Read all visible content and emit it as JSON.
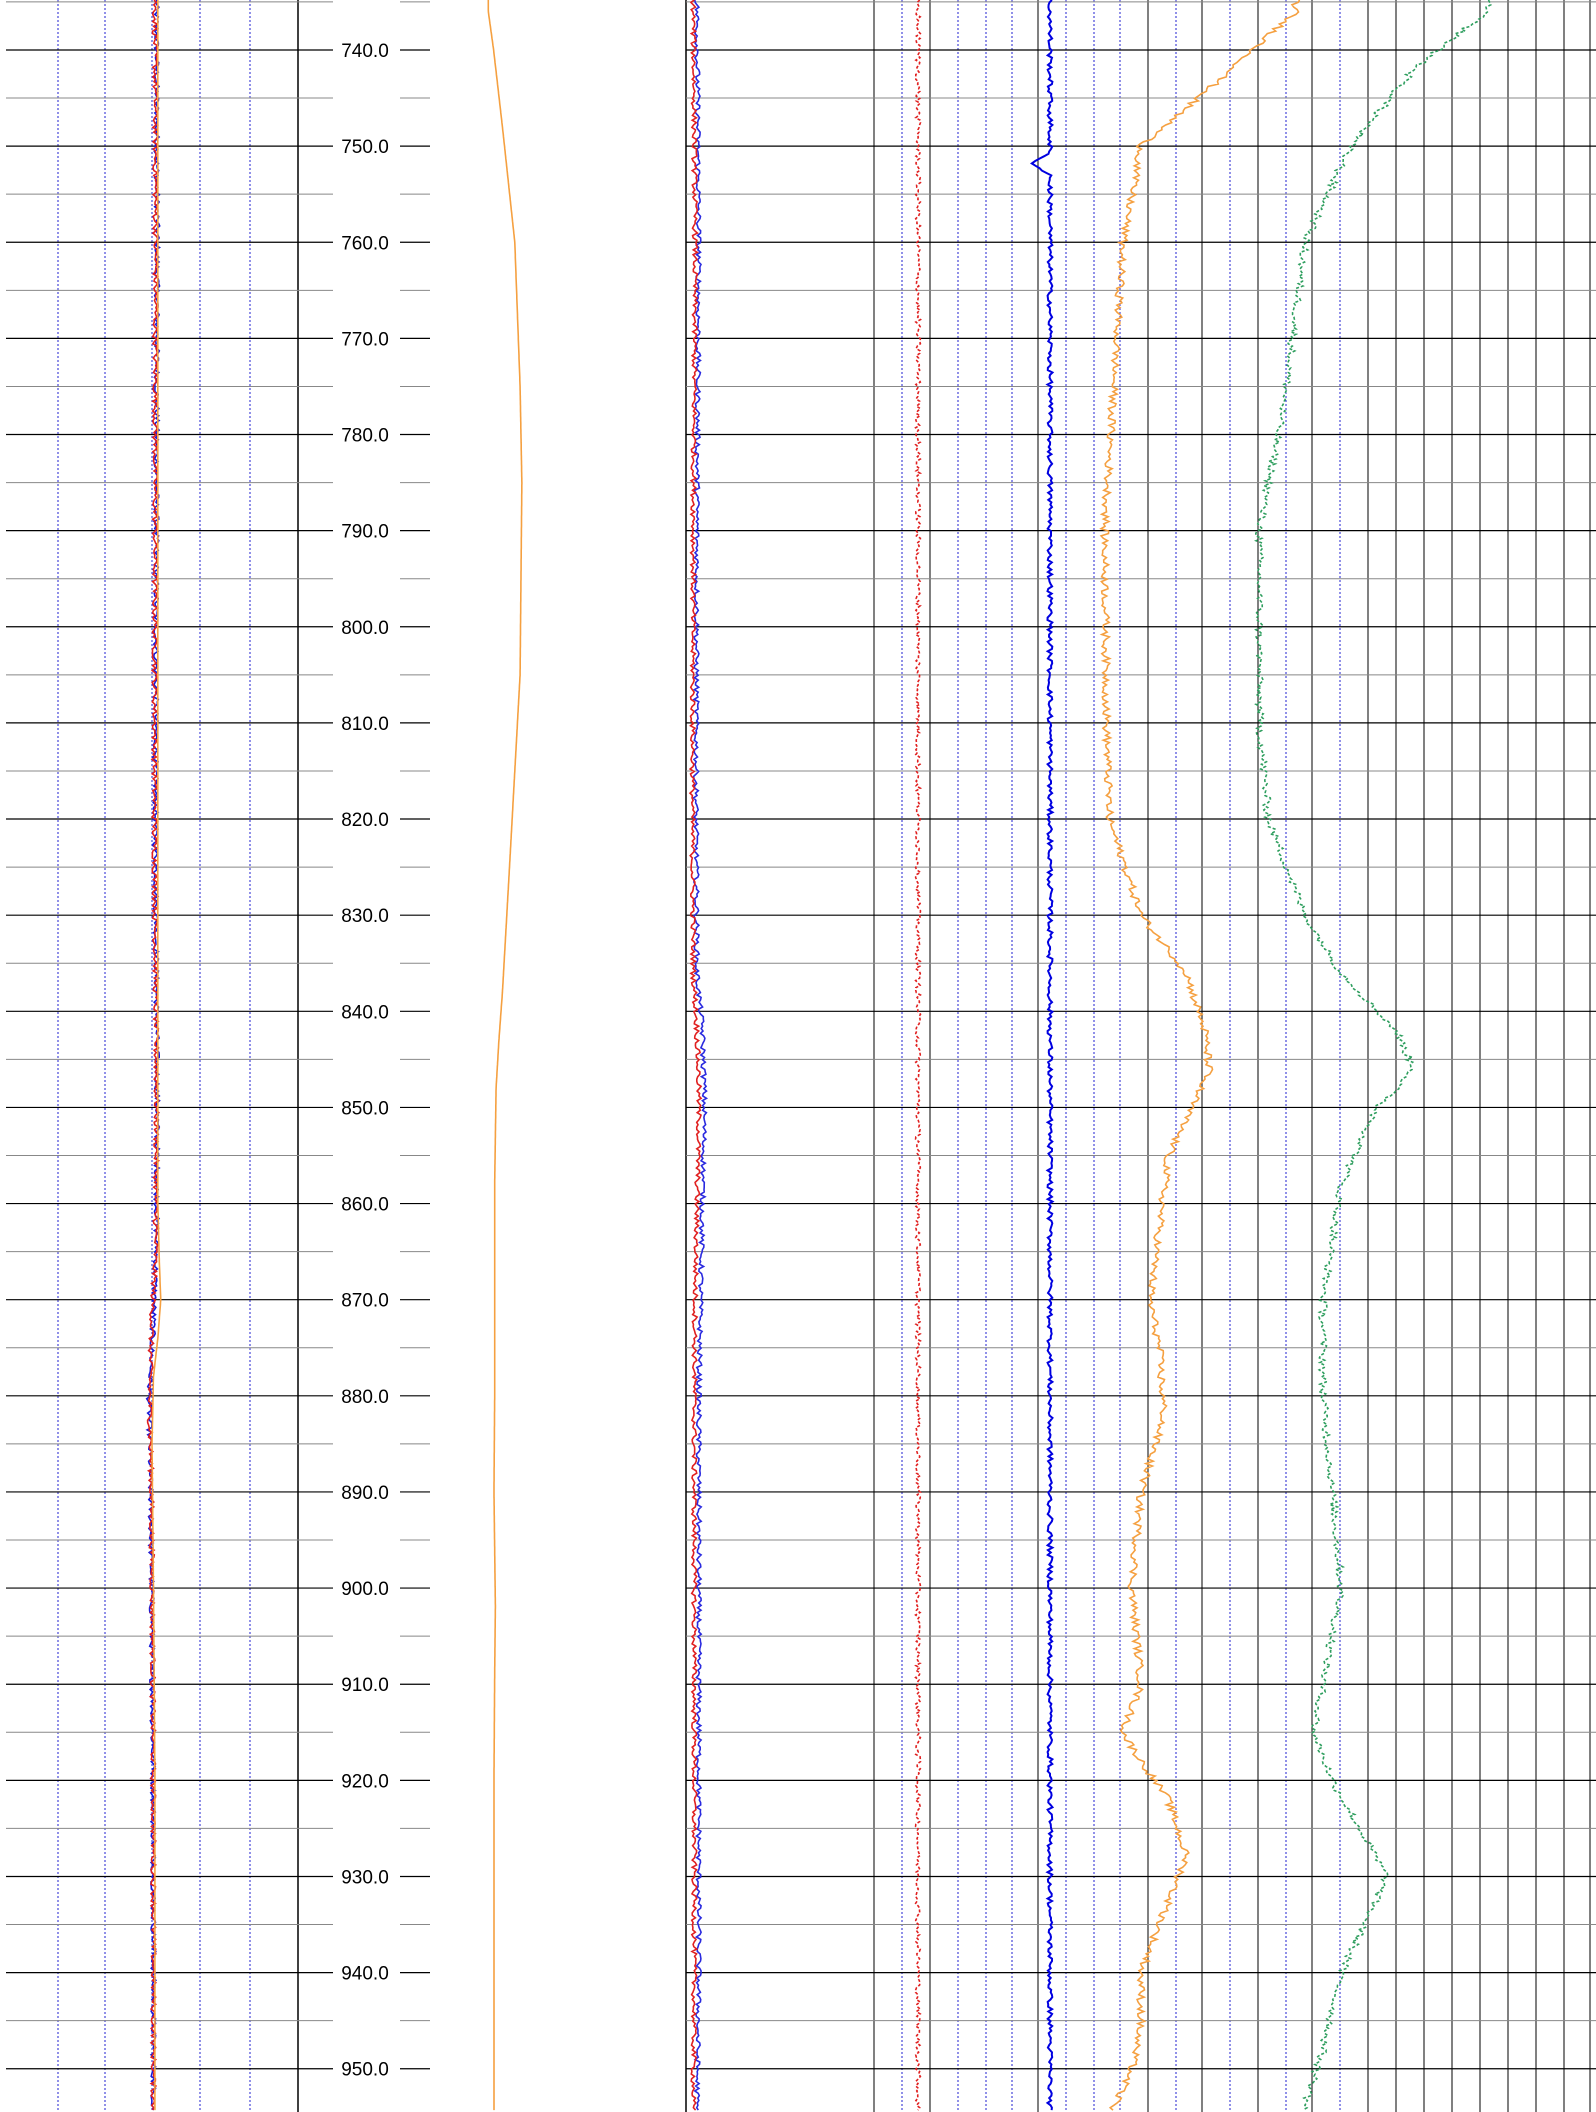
{
  "chart_data": {
    "type": "line",
    "depth_axis": {
      "range": [
        734.8,
        954.5
      ],
      "tick_labels": [
        "740.0",
        "750.0",
        "760.0",
        "770.0",
        "780.0",
        "790.0",
        "800.0",
        "810.0",
        "820.0",
        "830.0",
        "840.0",
        "850.0",
        "860.0",
        "870.0",
        "880.0",
        "890.0",
        "900.0",
        "910.0",
        "920.0",
        "930.0",
        "940.0",
        "950.0"
      ],
      "major_every": 10,
      "minor_every": 5,
      "grid": true
    },
    "tracks": [
      {
        "id": "track-1",
        "position": "left",
        "grid": true,
        "series": [
          {
            "color": "#1a1ad9",
            "style": "solid",
            "wiggle": true,
            "x": [
              0.515,
              0.518,
              0.515,
              0.512,
              0.515,
              0.518,
              0.515,
              0.505,
              0.498,
              0.49,
              0.495,
              0.5,
              0.505,
              0.505,
              0.505
            ],
            "depth": [
              736,
              760,
              790,
              820,
              836,
              850,
              865,
              872,
              876,
              880,
              890,
              905,
              925,
              940,
              954
            ]
          },
          {
            "color": "#e02020",
            "style": "solid",
            "wiggle": true,
            "x": [
              0.51,
              0.512,
              0.51,
              0.508,
              0.512,
              0.515,
              0.512,
              0.5,
              0.495,
              0.492,
              0.498,
              0.502,
              0.505,
              0.505,
              0.505
            ],
            "depth": [
              736,
              760,
              790,
              820,
              836,
              850,
              865,
              872,
              876,
              880,
              890,
              905,
              925,
              940,
              954
            ]
          },
          {
            "color": "#f5a040",
            "style": "solid",
            "wiggle": false,
            "x": [
              0.52,
              0.52,
              0.52,
              0.52,
              0.52,
              0.525,
              0.53,
              0.52,
              0.505,
              0.5,
              0.505,
              0.51,
              0.51,
              0.51
            ],
            "depth": [
              736,
              780,
              820,
              850,
              860,
              866,
              870,
              874,
              878,
              885,
              900,
              920,
              940,
              954
            ]
          }
        ]
      },
      {
        "id": "track-2",
        "position": "middle",
        "grid": false,
        "series": [
          {
            "color": "#f5a040",
            "style": "solid",
            "wiggle": false,
            "x": [
              0.44,
              0.455,
              0.48,
              0.515,
              0.53,
              0.535,
              0.53,
              0.5,
              0.48,
              0.47,
              0.462,
              0.458,
              0.458,
              0.458,
              0.456,
              0.46,
              0.458,
              0.456,
              0.456,
              0.456
            ],
            "depth": [
              736,
              740,
              748,
              760,
              775,
              785,
              805,
              825,
              838,
              843,
              848,
              858,
              870,
              880,
              890,
              902,
              909,
              920,
              935,
              954
            ]
          }
        ]
      },
      {
        "id": "track-3",
        "position": "right",
        "grid": true,
        "series": [
          {
            "color": "#2a2adf",
            "style": "solid",
            "wiggle": true,
            "x": [
              0.012,
              0.014,
              0.012,
              0.011,
              0.012,
              0.018,
              0.02,
              0.02,
              0.018,
              0.016,
              0.014,
              0.014,
              0.014,
              0.014,
              0.012
            ],
            "depth": [
              736,
              760,
              790,
              820,
              836,
              842,
              848,
              852,
              860,
              870,
              880,
              900,
              920,
              940,
              954
            ]
          },
          {
            "color": "#e02020",
            "style": "solid",
            "wiggle": true,
            "x": [
              0.008,
              0.01,
              0.008,
              0.007,
              0.008,
              0.012,
              0.014,
              0.014,
              0.012,
              0.01,
              0.009,
              0.009,
              0.009,
              0.009,
              0.008
            ],
            "depth": [
              736,
              760,
              790,
              820,
              836,
              842,
              848,
              852,
              860,
              870,
              880,
              900,
              920,
              940,
              954
            ]
          },
          {
            "color": "#e02020",
            "style": "dashed",
            "wiggle": true,
            "x": [
              0.255,
              0.255,
              0.255,
              0.255,
              0.255,
              0.255,
              0.255,
              0.255,
              0.255
            ],
            "depth": [
              736,
              770,
              800,
              830,
              860,
              890,
              920,
              940,
              954
            ]
          },
          {
            "color": "#0000e0",
            "style": "solid",
            "wiggle": true,
            "spike": {
              "depth": 751.8,
              "x": 0.38
            },
            "x": [
              0.4,
              0.4,
              0.4,
              0.4,
              0.4,
              0.4,
              0.4,
              0.4,
              0.4
            ],
            "depth": [
              736,
              770,
              800,
              830,
              860,
              890,
              920,
              940,
              954
            ]
          },
          {
            "color": "#f5a040",
            "style": "solid",
            "wiggle": true,
            "x": [
              0.67,
              0.6,
              0.5,
              0.48,
              0.47,
              0.46,
              0.462,
              0.465,
              0.5,
              0.55,
              0.57,
              0.575,
              0.53,
              0.51,
              0.52,
              0.525,
              0.5,
              0.49,
              0.5,
              0.48,
              0.5,
              0.53,
              0.55,
              0.52,
              0.5,
              0.5,
              0.49,
              0.47
            ],
            "depth": [
              736,
              742,
              750,
              760,
              775,
              790,
              810,
              820,
              830,
              836,
              842,
              846,
              855,
              870,
              875,
              882,
              890,
              900,
              910,
              915,
              918,
              922,
              928,
              935,
              940,
              945,
              950,
              954
            ]
          },
          {
            "color": "#2e9e5e",
            "style": "dashed",
            "wiggle": true,
            "x": [
              0.88,
              0.8,
              0.73,
              0.68,
              0.66,
              0.63,
              0.63,
              0.64,
              0.68,
              0.72,
              0.78,
              0.8,
              0.76,
              0.72,
              0.7,
              0.7,
              0.71,
              0.72,
              0.7,
              0.69,
              0.71,
              0.74,
              0.77,
              0.74,
              0.72,
              0.7,
              0.68
            ],
            "depth": [
              736,
              742,
              750,
              760,
              775,
              790,
              810,
              820,
              830,
              836,
              842,
              846,
              850,
              858,
              870,
              880,
              890,
              900,
              910,
              915,
              920,
              925,
              930,
              936,
              940,
              948,
              954
            ]
          }
        ]
      }
    ]
  }
}
